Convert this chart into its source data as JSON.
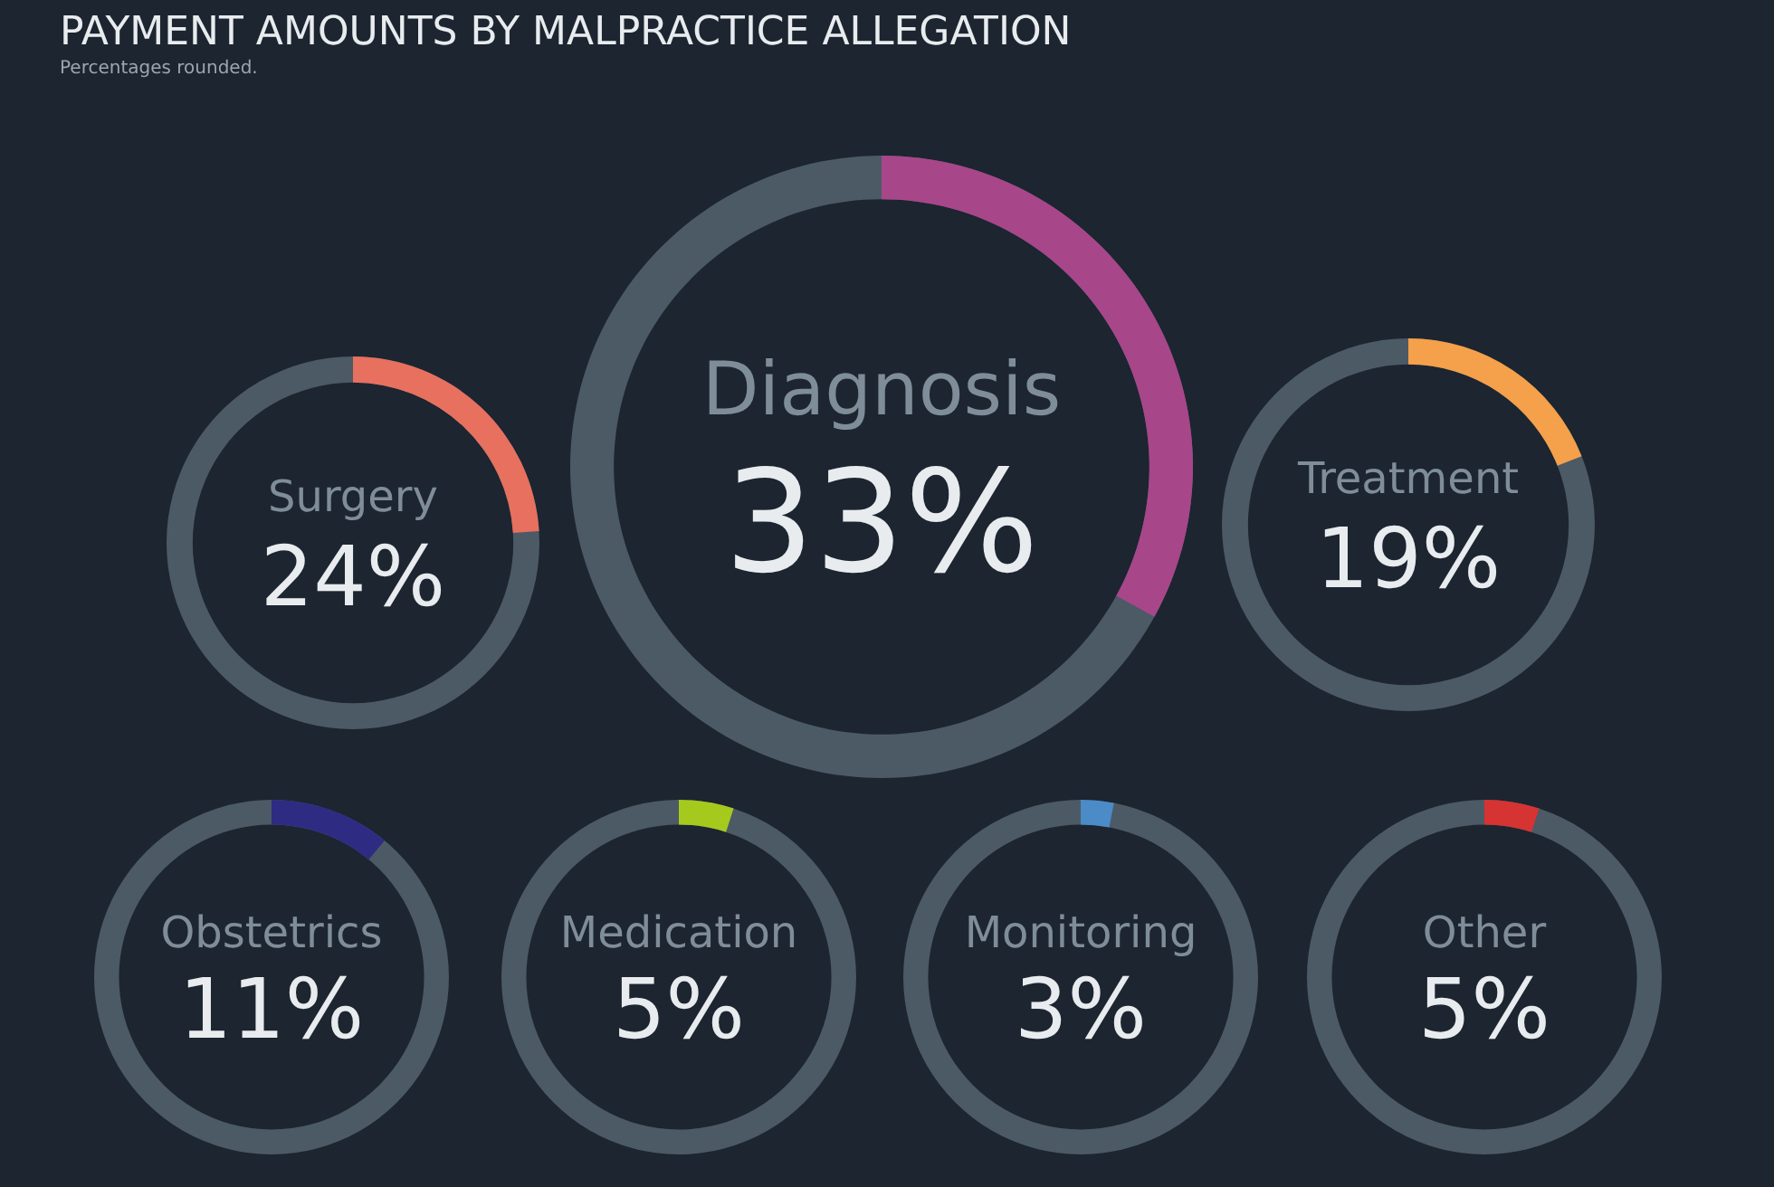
{
  "chart_data": {
    "type": "other",
    "title": "PAYMENT AMOUNTS BY MALPRACTICE ALLEGATION",
    "subtitle": "Percentages rounded.",
    "categories": [
      "Diagnosis",
      "Surgery",
      "Treatment",
      "Obstetrics",
      "Medication",
      "Monitoring",
      "Other"
    ],
    "values": [
      33,
      24,
      19,
      11,
      5,
      3,
      5
    ],
    "value_labels": [
      "33%",
      "24%",
      "19%",
      "11%",
      "5%",
      "3%",
      "5%"
    ],
    "colors": [
      "#a8468a",
      "#e8705f",
      "#f5a04a",
      "#2e2c82",
      "#a6c91e",
      "#4a8bc8",
      "#d63333"
    ]
  }
}
